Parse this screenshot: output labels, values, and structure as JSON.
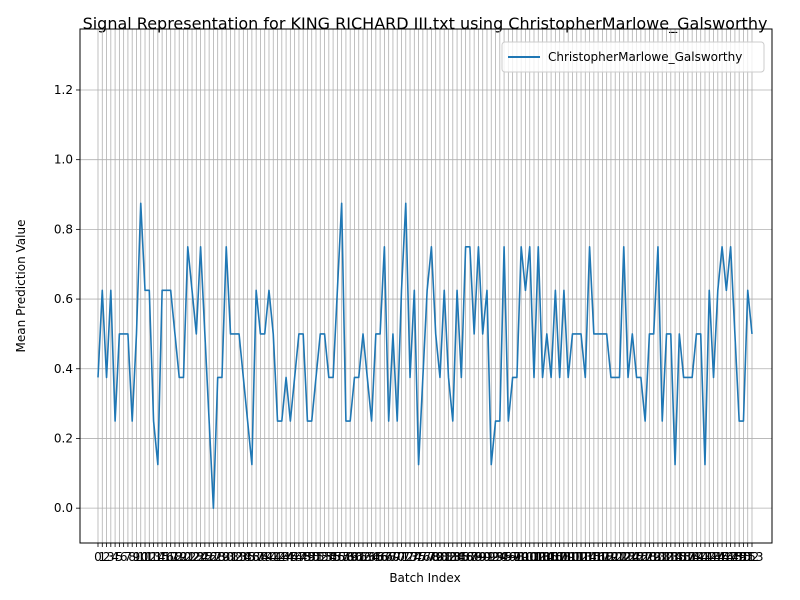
{
  "chart_data": {
    "type": "line",
    "title": "Signal Representation for KING RICHARD III.txt using ChristopherMarlowe_Galsworthy",
    "xlabel": "Batch Index",
    "ylabel": "Mean Prediction Value",
    "ylim": [
      -0.1,
      1.375
    ],
    "yticks": [
      0.0,
      0.2,
      0.4,
      0.6,
      0.8,
      1.0,
      1.2
    ],
    "ytick_labels": [
      "0.0",
      "0.2",
      "0.4",
      "0.6",
      "0.8",
      "1.0",
      "1.2"
    ],
    "grid": true,
    "legend": "upper right",
    "series_color": "#1f77b4",
    "series": [
      {
        "name": "ChristopherMarlowe_Galsworthy",
        "values": [
          0.375,
          0.625,
          0.375,
          0.625,
          0.25,
          0.5,
          0.5,
          0.5,
          0.25,
          0.5,
          0.875,
          0.625,
          0.625,
          0.25,
          0.125,
          0.625,
          0.625,
          0.625,
          0.5,
          0.375,
          0.375,
          0.75,
          0.625,
          0.5,
          0.75,
          0.5,
          0.25,
          0.0,
          0.375,
          0.375,
          0.75,
          0.5,
          0.5,
          0.5,
          0.375,
          0.25,
          0.125,
          0.625,
          0.5,
          0.5,
          0.625,
          0.5,
          0.25,
          0.25,
          0.375,
          0.25,
          0.375,
          0.5,
          0.5,
          0.25,
          0.25,
          0.375,
          0.5,
          0.5,
          0.375,
          0.375,
          0.625,
          0.875,
          0.25,
          0.25,
          0.375,
          0.375,
          0.5,
          0.375,
          0.25,
          0.5,
          0.5,
          0.75,
          0.25,
          0.5,
          0.25,
          0.625,
          0.875,
          0.375,
          0.625,
          0.125,
          0.375,
          0.625,
          0.75,
          0.5,
          0.375,
          0.625,
          0.375,
          0.25,
          0.625,
          0.375,
          0.75,
          0.75,
          0.5,
          0.75,
          0.5,
          0.625,
          0.125,
          0.25,
          0.25,
          0.75,
          0.25,
          0.375,
          0.375,
          0.75,
          0.625,
          0.75,
          0.375,
          0.75,
          0.375,
          0.5,
          0.375,
          0.625,
          0.375,
          0.625,
          0.375,
          0.5,
          0.5,
          0.5,
          0.375,
          0.75,
          0.5,
          0.5,
          0.5,
          0.5,
          0.375,
          0.375,
          0.375,
          0.75,
          0.375,
          0.5,
          0.375,
          0.375,
          0.25,
          0.5,
          0.5,
          0.75,
          0.25,
          0.5,
          0.5,
          0.125,
          0.5,
          0.375,
          0.375,
          0.375,
          0.5,
          0.5,
          0.125,
          0.625,
          0.375,
          0.625,
          0.75,
          0.625,
          0.75,
          0.5,
          0.25,
          0.25,
          0.625,
          0.5
        ]
      }
    ]
  }
}
